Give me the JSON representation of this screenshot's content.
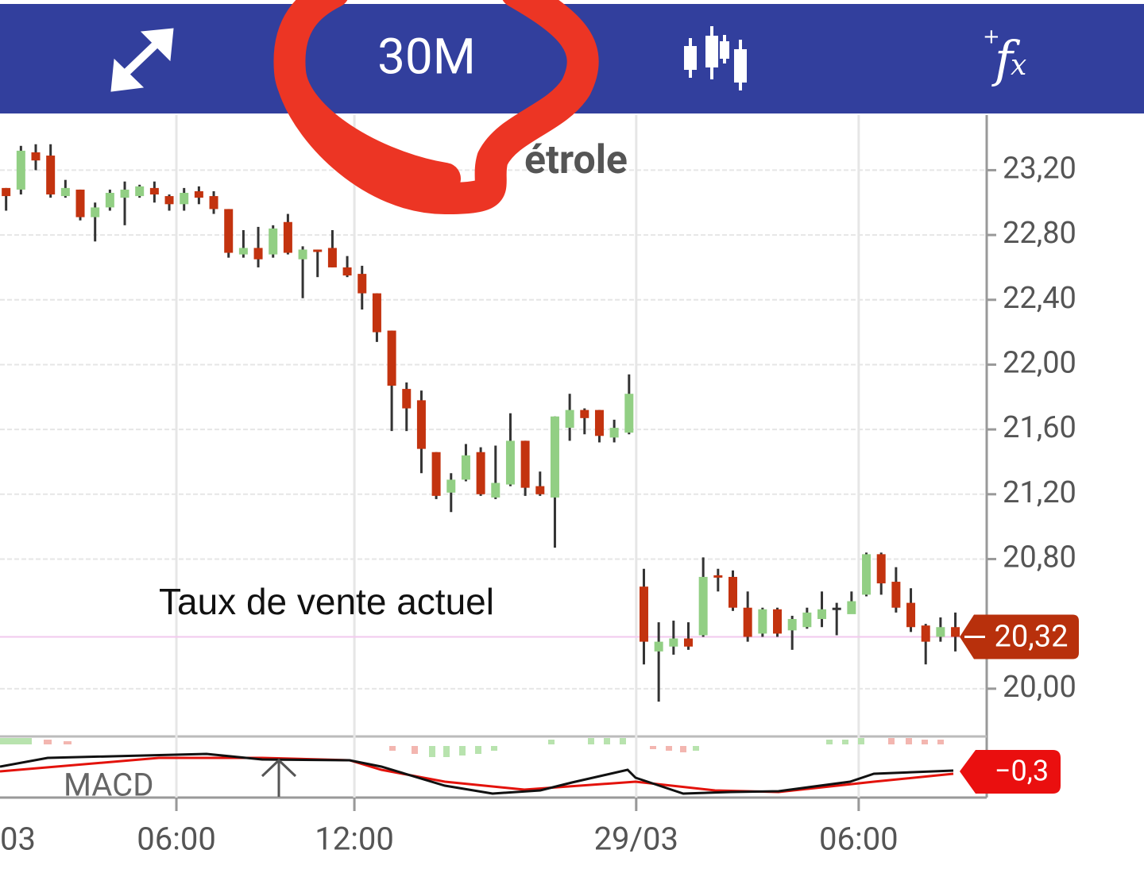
{
  "toolbar": {
    "interval": "30M"
  },
  "chart_data": {
    "type": "candlestick",
    "title": "étrole",
    "annotation": "Taux de vente actuel",
    "categories": [
      "03",
      null,
      null,
      null,
      null,
      null,
      null,
      null,
      null,
      null,
      null,
      null,
      "06:00",
      null,
      null,
      null,
      null,
      null,
      null,
      null,
      null,
      null,
      null,
      null,
      "12:00",
      null,
      null,
      null,
      null,
      null,
      null,
      null,
      null,
      null,
      null,
      null,
      null,
      null,
      null,
      null,
      null,
      null,
      null,
      "29/03",
      null,
      null,
      null,
      null,
      null,
      null,
      null,
      null,
      null,
      null,
      null,
      null,
      null,
      null,
      "06:00",
      null,
      null,
      null,
      null,
      null,
      null,
      null
    ],
    "open": [
      null,
      23.09,
      23.08,
      23.31,
      23.29,
      23.04,
      23.08,
      22.91,
      22.97,
      23.03,
      23.04,
      23.09,
      23.04,
      22.99,
      23.07,
      23.04,
      22.96,
      22.68,
      22.72,
      22.68,
      22.88,
      22.65,
      22.71,
      22.72,
      22.6,
      22.56,
      22.44,
      22.21,
      21.85,
      21.78,
      21.46,
      21.21,
      21.29,
      21.46,
      21.18,
      21.26,
      21.53,
      21.25,
      21.18,
      21.61,
      21.72,
      21.72,
      21.55,
      21.58,
      20.63,
      20.23,
      20.26,
      20.31,
      20.33,
      20.7,
      20.69,
      20.5,
      20.34,
      20.49,
      20.36,
      20.38,
      20.43,
      20.5,
      20.46,
      20.58,
      20.83,
      20.66,
      20.53,
      20.39,
      20.32,
      20.38
    ],
    "high": [
      null,
      23.09,
      23.35,
      23.36,
      23.36,
      23.14,
      23.08,
      23.0,
      23.08,
      23.13,
      23.11,
      23.13,
      23.05,
      23.09,
      23.1,
      23.07,
      22.96,
      22.83,
      22.85,
      22.86,
      22.93,
      22.73,
      22.71,
      22.83,
      22.67,
      22.61,
      22.44,
      22.21,
      21.89,
      21.84,
      21.46,
      21.33,
      21.51,
      21.49,
      21.5,
      21.7,
      21.53,
      21.34,
      21.68,
      21.82,
      21.73,
      21.72,
      21.66,
      21.94,
      20.74,
      20.41,
      20.42,
      20.41,
      20.81,
      20.74,
      20.73,
      20.6,
      20.5,
      20.5,
      20.45,
      20.5,
      20.6,
      20.53,
      20.6,
      20.84,
      20.84,
      20.75,
      20.62,
      20.4,
      20.44,
      20.47
    ],
    "low": [
      null,
      22.95,
      23.05,
      23.2,
      23.03,
      23.03,
      22.89,
      22.76,
      22.95,
      22.86,
      23.03,
      23.0,
      22.95,
      22.95,
      22.99,
      22.93,
      22.66,
      22.66,
      22.6,
      22.66,
      22.68,
      22.41,
      22.54,
      22.6,
      22.54,
      22.34,
      22.14,
      21.59,
      21.59,
      21.33,
      21.17,
      21.09,
      21.28,
      21.19,
      21.17,
      21.25,
      21.19,
      21.19,
      20.87,
      21.53,
      21.57,
      21.52,
      21.52,
      21.57,
      20.15,
      19.92,
      20.21,
      20.24,
      20.32,
      20.6,
      20.48,
      20.29,
      20.32,
      20.32,
      20.24,
      20.37,
      20.38,
      20.33,
      20.48,
      20.57,
      20.58,
      20.47,
      20.35,
      20.15,
      20.29,
      20.23
    ],
    "close": [
      null,
      23.04,
      23.32,
      23.26,
      23.05,
      23.09,
      22.91,
      22.97,
      23.06,
      23.08,
      23.1,
      23.05,
      22.99,
      23.06,
      23.03,
      22.96,
      22.69,
      22.72,
      22.65,
      22.84,
      22.69,
      22.71,
      22.7,
      22.6,
      22.55,
      22.44,
      22.2,
      21.87,
      21.73,
      21.48,
      21.19,
      21.29,
      21.44,
      21.2,
      21.27,
      21.53,
      21.24,
      21.2,
      21.68,
      21.72,
      21.67,
      21.56,
      21.61,
      21.82,
      20.29,
      20.29,
      20.31,
      20.26,
      20.69,
      20.69,
      20.5,
      20.32,
      20.49,
      20.34,
      20.43,
      20.47,
      20.49,
      20.5,
      20.54,
      20.83,
      20.65,
      20.5,
      20.38,
      20.29,
      20.38,
      20.32
    ],
    "up_color": "#92cf84",
    "down_color": "#c3330f",
    "ylim": [
      19.72,
      23.54
    ],
    "yticks": [
      {
        "value": 23.2,
        "label": "23,20"
      },
      {
        "value": 22.8,
        "label": "22,80"
      },
      {
        "value": 22.4,
        "label": "22,40"
      },
      {
        "value": 22.0,
        "label": "22,00"
      },
      {
        "value": 21.6,
        "label": "21,60"
      },
      {
        "value": 21.2,
        "label": "21,20"
      },
      {
        "value": 20.8,
        "label": "20,80"
      },
      {
        "value": 20.0,
        "label": "20,00"
      }
    ],
    "grid": true,
    "current": {
      "value": 20.32,
      "label": "20,32"
    },
    "macd": {
      "name": "MACD",
      "current": {
        "value": -0.3,
        "label": "−0,3"
      }
    }
  }
}
